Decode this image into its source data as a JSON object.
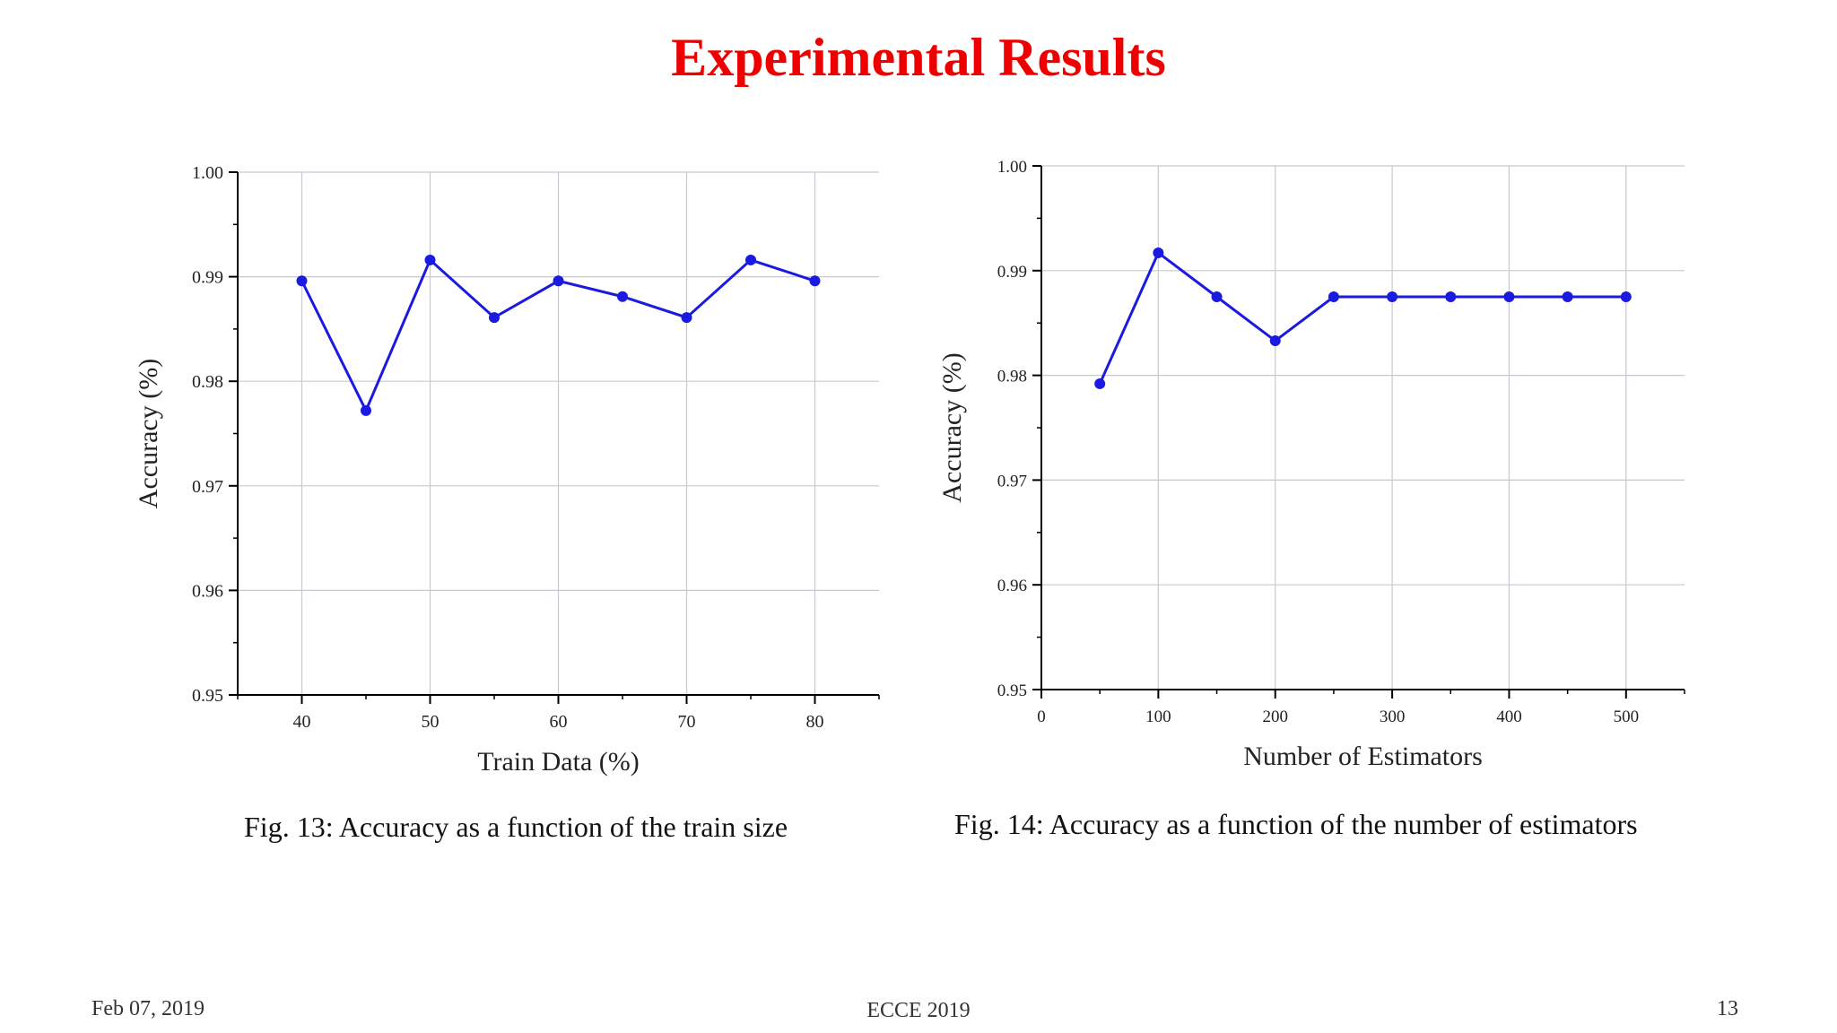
{
  "slide": {
    "title": "Experimental Results",
    "captions": [
      "Fig. 13: Accuracy as a function of the train size",
      "Fig. 14: Accuracy as a function of the number of estimators"
    ],
    "footer": {
      "date": "Feb 07, 2019",
      "conference": "ECCE 2019",
      "page": "13"
    }
  },
  "colors": {
    "series": "#1a1ae0",
    "title": "#ee0000",
    "grid": "#c8c8d0",
    "axis": "#000000"
  },
  "chart_data": [
    {
      "type": "line",
      "title": "",
      "xlabel": "Train Data (%)",
      "ylabel": "Accuracy (%)",
      "xlim": [
        35,
        85
      ],
      "ylim": [
        0.95,
        1.0
      ],
      "xticks": [
        40,
        50,
        60,
        70,
        80
      ],
      "xtick_labels": [
        "40",
        "50",
        "60",
        "70",
        "80"
      ],
      "yticks": [
        0.95,
        0.96,
        0.97,
        0.98,
        0.99,
        1.0
      ],
      "ytick_labels": [
        "0.95",
        "0.96",
        "0.97",
        "0.98",
        "0.99",
        "1.00"
      ],
      "grid": true,
      "series": [
        {
          "x": [
            40,
            45,
            50,
            55,
            60,
            65,
            70,
            75,
            80
          ],
          "y": [
            0.9896,
            0.9772,
            0.9916,
            0.9861,
            0.9896,
            0.9881,
            0.9861,
            0.9916,
            0.9896
          ]
        }
      ]
    },
    {
      "type": "line",
      "title": "",
      "xlabel": "Number of Estimators",
      "ylabel": "Accuracy (%)",
      "xlim": [
        0,
        550
      ],
      "ylim": [
        0.95,
        1.0
      ],
      "xticks": [
        0,
        100,
        200,
        300,
        400,
        500
      ],
      "xtick_labels": [
        "0",
        "100",
        "200",
        "300",
        "400",
        "500"
      ],
      "yticks": [
        0.95,
        0.96,
        0.97,
        0.98,
        0.99,
        1.0
      ],
      "ytick_labels": [
        "0.95",
        "0.96",
        "0.97",
        "0.98",
        "0.99",
        "1.00"
      ],
      "grid": true,
      "series": [
        {
          "x": [
            50,
            100,
            150,
            200,
            250,
            300,
            350,
            400,
            450,
            500
          ],
          "y": [
            0.9792,
            0.9917,
            0.9875,
            0.9833,
            0.9875,
            0.9875,
            0.9875,
            0.9875,
            0.9875,
            0.9875
          ]
        }
      ]
    }
  ]
}
